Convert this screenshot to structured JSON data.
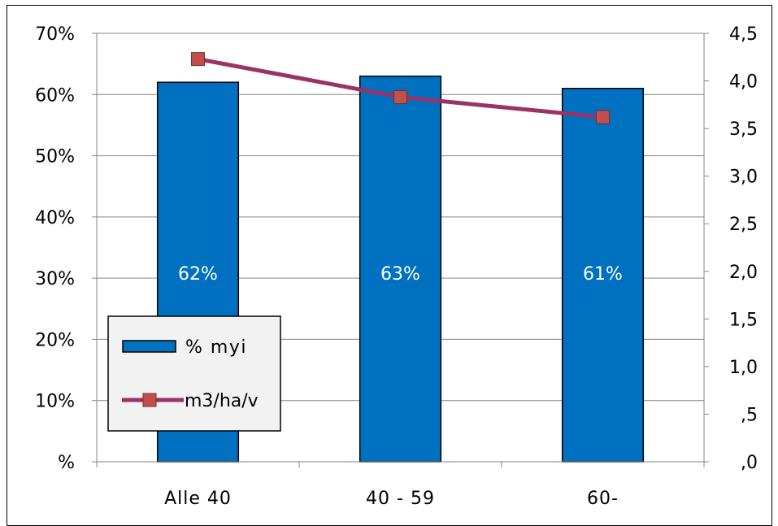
{
  "chart_data": {
    "type": "bar",
    "categories": [
      "Alle 40",
      "40 - 59",
      "60-"
    ],
    "series": [
      {
        "name": "% myi",
        "type": "bar",
        "axis": "left",
        "values": [
          0.62,
          0.63,
          0.61
        ],
        "data_labels": [
          "62%",
          "63%",
          "61%"
        ],
        "color": "#0070C0"
      },
      {
        "name": "m3/ha/v",
        "type": "line",
        "axis": "right",
        "values": [
          4.23,
          3.83,
          3.62
        ],
        "color": "#993366",
        "marker_color": "#C0504D"
      }
    ],
    "y_left": {
      "min": 0,
      "max": 0.7,
      "ticks": [
        0,
        0.1,
        0.2,
        0.3,
        0.4,
        0.5,
        0.6,
        0.7
      ],
      "tick_labels": [
        "%",
        "10%",
        "20%",
        "30%",
        "40%",
        "50%",
        "60%",
        "70%"
      ]
    },
    "y_right": {
      "min": 0,
      "max": 4.5,
      "ticks": [
        0,
        0.5,
        1,
        1.5,
        2,
        2.5,
        3,
        3.5,
        4,
        4.5
      ],
      "tick_labels": [
        ",0",
        ",5",
        "1,0",
        "1,5",
        "2,0",
        "2,5",
        "3,0",
        "3,5",
        "4,0",
        "4,5"
      ]
    },
    "grid": true,
    "legend_position": "bottom-left"
  }
}
